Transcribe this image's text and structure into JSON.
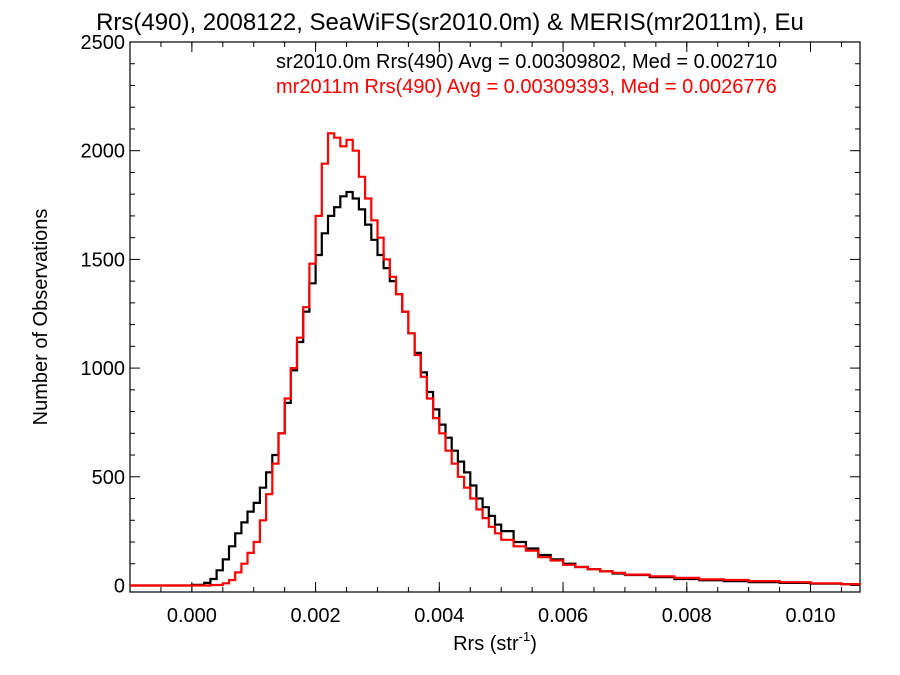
{
  "chart_data": {
    "type": "line",
    "title": "Rrs(490), 2008122, SeaWiFS(sr2010.0m) & MERIS(mr2011m), Eu",
    "xlabel": "Rrs (str",
    "xlabel_sup": "-1",
    "xlabel_close": ")",
    "ylabel": "Number of Observations",
    "xlim": [
      -0.001,
      0.0108
    ],
    "ylim": [
      -30,
      2500
    ],
    "x_ticks": [
      0.0,
      0.002,
      0.004,
      0.006,
      0.008,
      0.01
    ],
    "x_tick_labels": [
      "0.000",
      "0.002",
      "0.004",
      "0.006",
      "0.008",
      "0.010"
    ],
    "y_ticks": [
      0,
      500,
      1000,
      1500,
      2000,
      2500
    ],
    "y_tick_labels": [
      "0",
      "500",
      "1000",
      "1500",
      "2000",
      "2500"
    ],
    "grid": false,
    "annotations": [
      {
        "text": "sr2010.0m Rrs(490) Avg = 0.00309802, Med = 0.002710",
        "color": "#000000"
      },
      {
        "text": "mr2011m Rrs(490) Avg = 0.00309393, Med = 0.0026776",
        "color": "#ff0000"
      }
    ],
    "series": [
      {
        "color": "#000000",
        "points": [
          [
            -0.001,
            0
          ],
          [
            0.0,
            3
          ],
          [
            0.0002,
            12
          ],
          [
            0.0003,
            30
          ],
          [
            0.0004,
            70
          ],
          [
            0.0005,
            120
          ],
          [
            0.0006,
            180
          ],
          [
            0.0007,
            240
          ],
          [
            0.0008,
            290
          ],
          [
            0.0009,
            340
          ],
          [
            0.001,
            380
          ],
          [
            0.0011,
            450
          ],
          [
            0.0012,
            520
          ],
          [
            0.0013,
            600
          ],
          [
            0.0014,
            700
          ],
          [
            0.0015,
            840
          ],
          [
            0.0016,
            990
          ],
          [
            0.0017,
            1120
          ],
          [
            0.0018,
            1260
          ],
          [
            0.0019,
            1390
          ],
          [
            0.002,
            1520
          ],
          [
            0.0021,
            1620
          ],
          [
            0.0022,
            1700
          ],
          [
            0.0023,
            1740
          ],
          [
            0.0024,
            1790
          ],
          [
            0.0025,
            1810
          ],
          [
            0.0026,
            1780
          ],
          [
            0.0027,
            1730
          ],
          [
            0.0028,
            1660
          ],
          [
            0.0029,
            1590
          ],
          [
            0.003,
            1520
          ],
          [
            0.0031,
            1460
          ],
          [
            0.0032,
            1400
          ],
          [
            0.0033,
            1340
          ],
          [
            0.0034,
            1260
          ],
          [
            0.0035,
            1160
          ],
          [
            0.0036,
            1070
          ],
          [
            0.0037,
            980
          ],
          [
            0.0038,
            890
          ],
          [
            0.0039,
            810
          ],
          [
            0.004,
            740
          ],
          [
            0.0041,
            680
          ],
          [
            0.0042,
            620
          ],
          [
            0.0043,
            570
          ],
          [
            0.0044,
            520
          ],
          [
            0.0045,
            460
          ],
          [
            0.0046,
            400
          ],
          [
            0.0047,
            360
          ],
          [
            0.0048,
            320
          ],
          [
            0.0049,
            280
          ],
          [
            0.005,
            250
          ],
          [
            0.0052,
            200
          ],
          [
            0.0054,
            170
          ],
          [
            0.0056,
            140
          ],
          [
            0.0058,
            120
          ],
          [
            0.006,
            100
          ],
          [
            0.0062,
            85
          ],
          [
            0.0064,
            75
          ],
          [
            0.0066,
            65
          ],
          [
            0.0068,
            55
          ],
          [
            0.007,
            48
          ],
          [
            0.0074,
            38
          ],
          [
            0.0078,
            30
          ],
          [
            0.0082,
            24
          ],
          [
            0.0086,
            20
          ],
          [
            0.009,
            15
          ],
          [
            0.0095,
            12
          ],
          [
            0.01,
            8
          ],
          [
            0.0105,
            6
          ],
          [
            0.0108,
            5
          ]
        ]
      },
      {
        "color": "#ff0000",
        "points": [
          [
            -0.001,
            0
          ],
          [
            0.0,
            0
          ],
          [
            0.0003,
            2
          ],
          [
            0.0005,
            10
          ],
          [
            0.0006,
            25
          ],
          [
            0.0007,
            60
          ],
          [
            0.0008,
            100
          ],
          [
            0.0009,
            150
          ],
          [
            0.001,
            200
          ],
          [
            0.0011,
            300
          ],
          [
            0.0012,
            420
          ],
          [
            0.0013,
            560
          ],
          [
            0.0014,
            700
          ],
          [
            0.0015,
            860
          ],
          [
            0.0016,
            1000
          ],
          [
            0.0017,
            1140
          ],
          [
            0.0018,
            1280
          ],
          [
            0.0019,
            1480
          ],
          [
            0.002,
            1700
          ],
          [
            0.0021,
            1940
          ],
          [
            0.0022,
            2080
          ],
          [
            0.0023,
            2060
          ],
          [
            0.0024,
            2020
          ],
          [
            0.0025,
            2050
          ],
          [
            0.0026,
            2000
          ],
          [
            0.0027,
            1880
          ],
          [
            0.0028,
            1780
          ],
          [
            0.0029,
            1680
          ],
          [
            0.003,
            1600
          ],
          [
            0.0031,
            1500
          ],
          [
            0.0032,
            1420
          ],
          [
            0.0033,
            1340
          ],
          [
            0.0034,
            1260
          ],
          [
            0.0035,
            1160
          ],
          [
            0.0036,
            1060
          ],
          [
            0.0037,
            960
          ],
          [
            0.0038,
            860
          ],
          [
            0.0039,
            770
          ],
          [
            0.004,
            700
          ],
          [
            0.0041,
            620
          ],
          [
            0.0042,
            560
          ],
          [
            0.0043,
            500
          ],
          [
            0.0044,
            450
          ],
          [
            0.0045,
            400
          ],
          [
            0.0046,
            350
          ],
          [
            0.0047,
            310
          ],
          [
            0.0048,
            270
          ],
          [
            0.0049,
            240
          ],
          [
            0.005,
            210
          ],
          [
            0.0052,
            180
          ],
          [
            0.0054,
            160
          ],
          [
            0.0056,
            130
          ],
          [
            0.0058,
            115
          ],
          [
            0.006,
            95
          ],
          [
            0.0062,
            85
          ],
          [
            0.0064,
            75
          ],
          [
            0.0066,
            65
          ],
          [
            0.0068,
            58
          ],
          [
            0.007,
            50
          ],
          [
            0.0074,
            42
          ],
          [
            0.0078,
            35
          ],
          [
            0.0082,
            28
          ],
          [
            0.0086,
            25
          ],
          [
            0.009,
            20
          ],
          [
            0.0095,
            15
          ],
          [
            0.01,
            10
          ],
          [
            0.0105,
            6
          ],
          [
            0.0108,
            4
          ]
        ]
      }
    ]
  }
}
